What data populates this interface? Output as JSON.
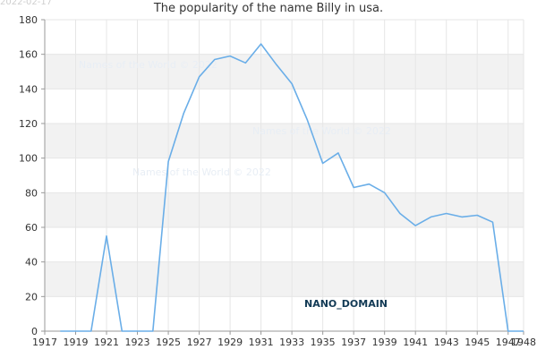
{
  "date_stamp": "2022-02-17",
  "colors": {
    "line": "#6aaee8",
    "band": "#f2f2f2",
    "grid": "#e6e6e6",
    "axis": "#999999",
    "text": "#333333",
    "watermark": "#e8eef5",
    "badge_fill": "#123a55"
  },
  "watermarks": [
    "Names of the World © 2022",
    "Names of the World © 2022",
    "Names of the World © 2022"
  ],
  "badge": "NANO_DOMAIN",
  "chart_data": {
    "type": "line",
    "title": "The popularity of the name Billy in usa.",
    "xlabel": "",
    "ylabel": "",
    "xlim": [
      1917,
      1948
    ],
    "ylim": [
      0,
      180
    ],
    "x_ticks": [
      1917,
      1919,
      1921,
      1923,
      1925,
      1927,
      1929,
      1931,
      1933,
      1935,
      1937,
      1939,
      1941,
      1943,
      1945,
      1947,
      1948
    ],
    "y_ticks": [
      0,
      20,
      40,
      60,
      80,
      100,
      120,
      140,
      160,
      180
    ],
    "grid": true,
    "x": [
      1918,
      1919,
      1920,
      1921,
      1922,
      1923,
      1924,
      1925,
      1926,
      1927,
      1928,
      1929,
      1930,
      1931,
      1932,
      1933,
      1934,
      1935,
      1936,
      1937,
      1938,
      1939,
      1940,
      1941,
      1942,
      1943,
      1944,
      1945,
      1946,
      1947,
      1948
    ],
    "values": [
      0,
      0,
      0,
      55,
      0,
      0,
      0,
      98,
      126,
      147,
      157,
      159,
      155,
      166,
      154,
      143,
      122,
      97,
      103,
      83,
      85,
      80,
      68,
      61,
      66,
      68,
      66,
      67,
      63,
      0,
      0
    ]
  }
}
